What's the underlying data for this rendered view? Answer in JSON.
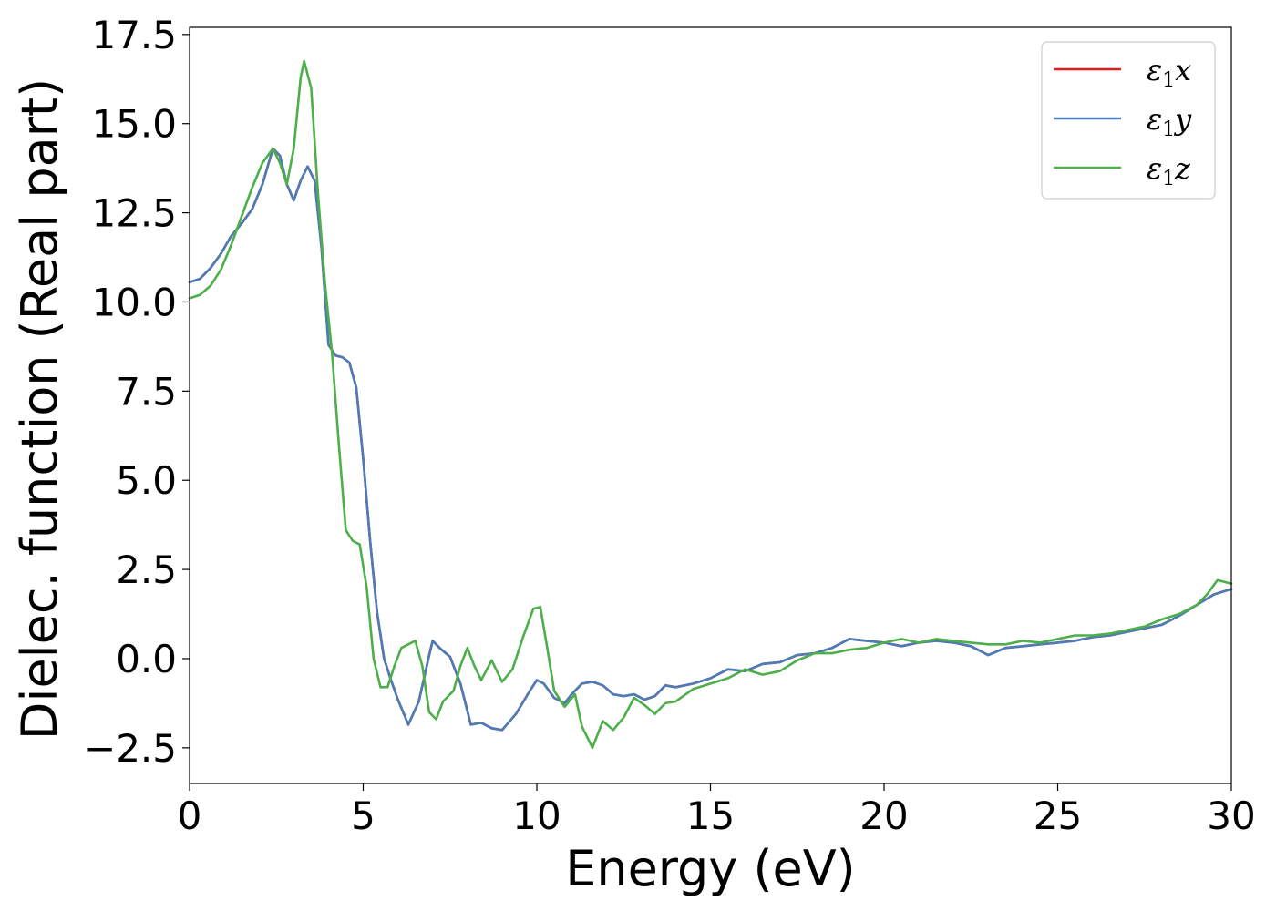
{
  "chart_data": {
    "type": "line",
    "title": "",
    "xlabel": "Energy (eV)",
    "ylabel": "Dielec. function (Real part)",
    "xlim": [
      0,
      30
    ],
    "ylim": [
      -3.5,
      17.7
    ],
    "xticks": [
      0,
      5,
      10,
      15,
      20,
      25,
      30
    ],
    "xtick_labels": [
      "0",
      "5",
      "10",
      "15",
      "20",
      "25",
      "30"
    ],
    "yticks": [
      -2.5,
      0.0,
      2.5,
      5.0,
      7.5,
      10.0,
      12.5,
      15.0,
      17.5
    ],
    "ytick_labels": [
      "−2.5",
      "0.0",
      "2.5",
      "5.0",
      "7.5",
      "10.0",
      "12.5",
      "15.0",
      "17.5"
    ],
    "grid": false,
    "legend_position": "top-right",
    "series": [
      {
        "name": "ε₁x",
        "label_main": "ε",
        "label_sub": "1",
        "label_tail": "x",
        "color": "#e41a1c",
        "x": [
          0,
          0.3,
          0.6,
          0.9,
          1.2,
          1.5,
          1.8,
          2.1,
          2.4,
          2.6,
          2.8,
          3.0,
          3.2,
          3.4,
          3.6,
          3.8,
          4.0,
          4.2,
          4.4,
          4.6,
          4.8,
          5.0,
          5.2,
          5.4,
          5.6,
          5.8,
          6.0,
          6.3,
          6.6,
          6.9,
          7.0,
          7.2,
          7.5,
          7.8,
          8.1,
          8.4,
          8.7,
          9.0,
          9.4,
          9.8,
          10.0,
          10.2,
          10.5,
          10.8,
          11.0,
          11.3,
          11.6,
          11.9,
          12.2,
          12.5,
          12.8,
          13.1,
          13.4,
          13.7,
          14.0,
          14.5,
          15.0,
          15.5,
          16.0,
          16.5,
          17.0,
          17.5,
          18.0,
          18.5,
          19.0,
          19.5,
          20.0,
          20.5,
          21.0,
          21.5,
          22.0,
          22.5,
          23.0,
          23.5,
          24.0,
          24.5,
          25.0,
          25.5,
          26.0,
          26.5,
          27.0,
          27.5,
          28.0,
          28.5,
          29.0,
          29.5,
          30.0
        ],
        "y": [
          10.55,
          10.65,
          10.95,
          11.35,
          11.85,
          12.2,
          12.6,
          13.3,
          14.3,
          14.1,
          13.3,
          12.85,
          13.4,
          13.8,
          13.4,
          11.5,
          8.8,
          8.5,
          8.45,
          8.3,
          7.6,
          5.6,
          3.3,
          1.3,
          0.0,
          -0.6,
          -1.15,
          -1.85,
          -1.2,
          0.1,
          0.5,
          0.3,
          0.05,
          -0.7,
          -1.85,
          -1.8,
          -1.95,
          -2.0,
          -1.55,
          -0.9,
          -0.6,
          -0.7,
          -1.1,
          -1.25,
          -1.0,
          -0.7,
          -0.65,
          -0.75,
          -1.0,
          -1.05,
          -1.0,
          -1.15,
          -1.05,
          -0.75,
          -0.8,
          -0.7,
          -0.55,
          -0.3,
          -0.35,
          -0.15,
          -0.1,
          0.1,
          0.15,
          0.3,
          0.55,
          0.5,
          0.45,
          0.35,
          0.45,
          0.5,
          0.45,
          0.35,
          0.1,
          0.3,
          0.35,
          0.4,
          0.45,
          0.5,
          0.6,
          0.65,
          0.75,
          0.85,
          0.95,
          1.2,
          1.5,
          1.8,
          1.95
        ]
      },
      {
        "name": "ε₁y",
        "label_main": "ε",
        "label_sub": "1",
        "label_tail": "y",
        "color": "#4a7db8",
        "x": [
          0,
          0.3,
          0.6,
          0.9,
          1.2,
          1.5,
          1.8,
          2.1,
          2.4,
          2.6,
          2.8,
          3.0,
          3.2,
          3.4,
          3.6,
          3.8,
          4.0,
          4.2,
          4.4,
          4.6,
          4.8,
          5.0,
          5.2,
          5.4,
          5.6,
          5.8,
          6.0,
          6.3,
          6.6,
          6.9,
          7.0,
          7.2,
          7.5,
          7.8,
          8.1,
          8.4,
          8.7,
          9.0,
          9.4,
          9.8,
          10.0,
          10.2,
          10.5,
          10.8,
          11.0,
          11.3,
          11.6,
          11.9,
          12.2,
          12.5,
          12.8,
          13.1,
          13.4,
          13.7,
          14.0,
          14.5,
          15.0,
          15.5,
          16.0,
          16.5,
          17.0,
          17.5,
          18.0,
          18.5,
          19.0,
          19.5,
          20.0,
          20.5,
          21.0,
          21.5,
          22.0,
          22.5,
          23.0,
          23.5,
          24.0,
          24.5,
          25.0,
          25.5,
          26.0,
          26.5,
          27.0,
          27.5,
          28.0,
          28.5,
          29.0,
          29.5,
          30.0
        ],
        "y": [
          10.55,
          10.65,
          10.95,
          11.35,
          11.85,
          12.2,
          12.6,
          13.3,
          14.3,
          14.1,
          13.3,
          12.85,
          13.4,
          13.8,
          13.4,
          11.5,
          8.8,
          8.5,
          8.45,
          8.3,
          7.6,
          5.6,
          3.3,
          1.3,
          0.0,
          -0.6,
          -1.15,
          -1.85,
          -1.2,
          0.1,
          0.5,
          0.3,
          0.05,
          -0.7,
          -1.85,
          -1.8,
          -1.95,
          -2.0,
          -1.55,
          -0.9,
          -0.6,
          -0.7,
          -1.1,
          -1.25,
          -1.0,
          -0.7,
          -0.65,
          -0.75,
          -1.0,
          -1.05,
          -1.0,
          -1.15,
          -1.05,
          -0.75,
          -0.8,
          -0.7,
          -0.55,
          -0.3,
          -0.35,
          -0.15,
          -0.1,
          0.1,
          0.15,
          0.3,
          0.55,
          0.5,
          0.45,
          0.35,
          0.45,
          0.5,
          0.45,
          0.35,
          0.1,
          0.3,
          0.35,
          0.4,
          0.45,
          0.5,
          0.6,
          0.65,
          0.75,
          0.85,
          0.95,
          1.2,
          1.5,
          1.8,
          1.95
        ]
      },
      {
        "name": "ε₁z",
        "label_main": "ε",
        "label_sub": "1",
        "label_tail": "z",
        "color": "#4daf4a",
        "x": [
          0,
          0.3,
          0.6,
          0.9,
          1.2,
          1.5,
          1.8,
          2.1,
          2.4,
          2.6,
          2.8,
          3.0,
          3.2,
          3.3,
          3.5,
          3.7,
          3.9,
          4.1,
          4.3,
          4.5,
          4.7,
          4.9,
          5.1,
          5.3,
          5.5,
          5.7,
          5.9,
          6.1,
          6.3,
          6.5,
          6.7,
          6.9,
          7.1,
          7.3,
          7.6,
          7.8,
          8.0,
          8.2,
          8.4,
          8.7,
          9.0,
          9.3,
          9.6,
          9.9,
          10.1,
          10.3,
          10.5,
          10.8,
          11.1,
          11.3,
          11.6,
          11.9,
          12.2,
          12.5,
          12.8,
          13.1,
          13.4,
          13.7,
          14.0,
          14.5,
          15.0,
          15.5,
          16.0,
          16.5,
          17.0,
          17.5,
          18.0,
          18.5,
          19.0,
          19.5,
          20.0,
          20.5,
          21.0,
          21.5,
          22.0,
          22.5,
          23.0,
          23.5,
          24.0,
          24.5,
          25.0,
          25.5,
          26.0,
          26.5,
          27.0,
          27.5,
          28.0,
          28.5,
          29.0,
          29.3,
          29.6,
          30.0
        ],
        "y": [
          10.1,
          10.2,
          10.45,
          10.9,
          11.6,
          12.4,
          13.2,
          13.9,
          14.3,
          13.9,
          13.3,
          14.3,
          16.3,
          16.75,
          16.0,
          13.0,
          10.5,
          8.6,
          6.0,
          3.6,
          3.3,
          3.2,
          2.0,
          0.0,
          -0.8,
          -0.8,
          -0.2,
          0.3,
          0.4,
          0.5,
          -0.2,
          -1.5,
          -1.7,
          -1.2,
          -0.9,
          -0.2,
          0.3,
          -0.2,
          -0.6,
          -0.05,
          -0.65,
          -0.3,
          0.6,
          1.4,
          1.45,
          0.3,
          -0.9,
          -1.35,
          -1.0,
          -1.9,
          -2.5,
          -1.75,
          -2.0,
          -1.65,
          -1.1,
          -1.3,
          -1.55,
          -1.25,
          -1.2,
          -0.85,
          -0.7,
          -0.55,
          -0.3,
          -0.45,
          -0.35,
          -0.05,
          0.15,
          0.15,
          0.25,
          0.3,
          0.45,
          0.55,
          0.45,
          0.55,
          0.5,
          0.45,
          0.4,
          0.4,
          0.5,
          0.45,
          0.55,
          0.65,
          0.65,
          0.7,
          0.8,
          0.9,
          1.1,
          1.25,
          1.5,
          1.8,
          2.2,
          2.1
        ]
      }
    ]
  }
}
